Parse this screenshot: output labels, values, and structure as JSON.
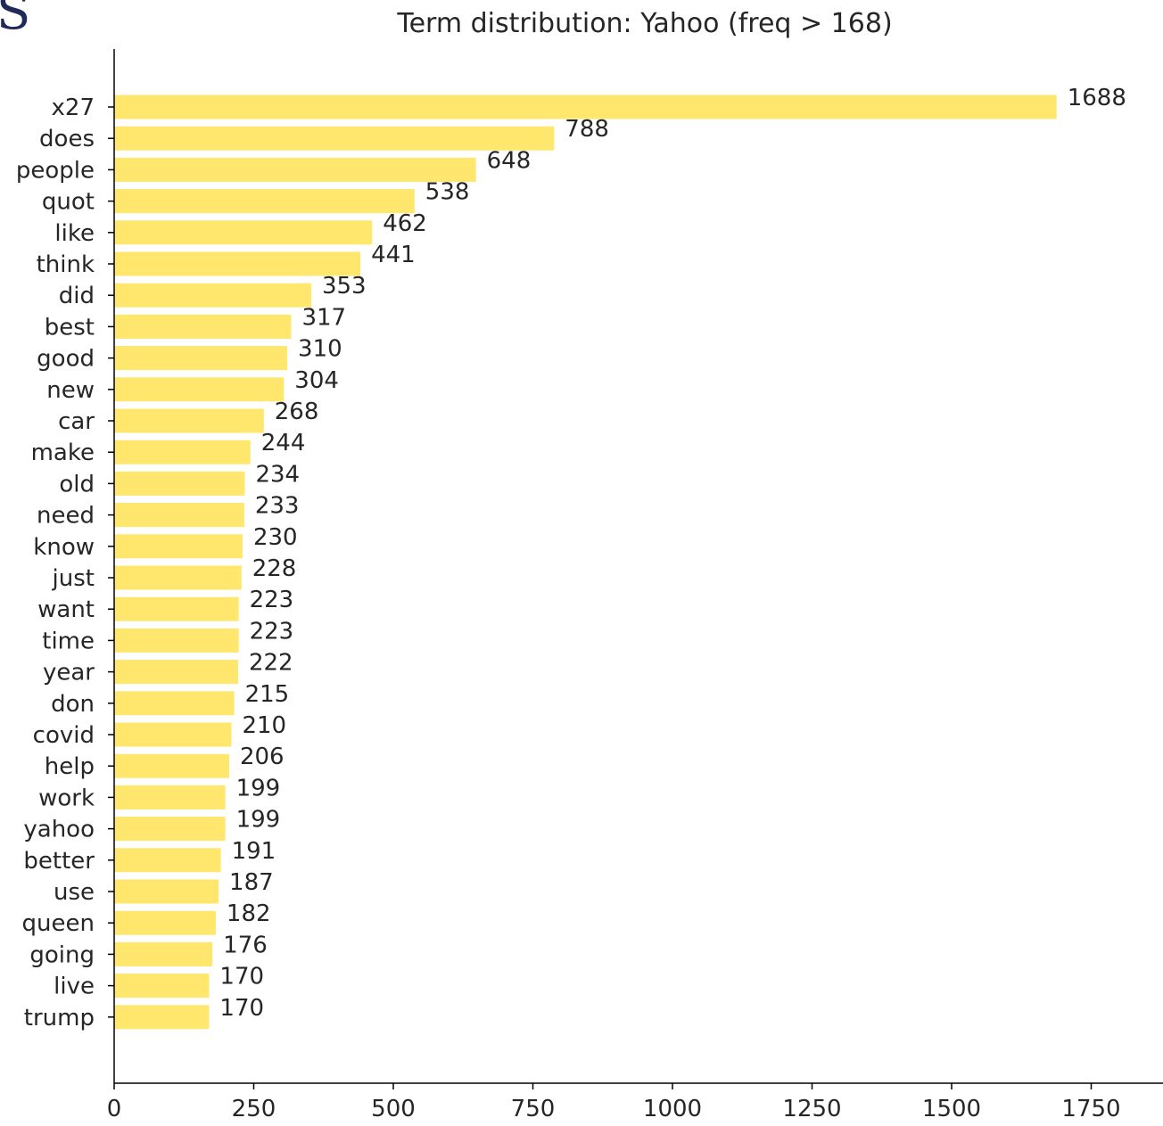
{
  "page_fragment": "S",
  "chart_data": {
    "type": "bar",
    "orientation": "horizontal",
    "title": "Term distribution: Yahoo (freq > 168)",
    "xlabel": "",
    "ylabel": "",
    "xlim": [
      0,
      1860
    ],
    "xticks": [
      0,
      250,
      500,
      750,
      1000,
      1250,
      1500,
      1750
    ],
    "bar_color": "#ffe66d",
    "categories": [
      "x27",
      "does",
      "people",
      "quot",
      "like",
      "think",
      "did",
      "best",
      "good",
      "new",
      "car",
      "make",
      "old",
      "need",
      "know",
      "just",
      "want",
      "time",
      "year",
      "don",
      "covid",
      "help",
      "work",
      "yahoo",
      "better",
      "use",
      "queen",
      "going",
      "live",
      "trump"
    ],
    "values": [
      1688,
      788,
      648,
      538,
      462,
      441,
      353,
      317,
      310,
      304,
      268,
      244,
      234,
      233,
      230,
      228,
      223,
      223,
      222,
      215,
      210,
      206,
      199,
      199,
      191,
      187,
      182,
      176,
      170,
      170
    ],
    "grid": false,
    "legend": "none"
  }
}
